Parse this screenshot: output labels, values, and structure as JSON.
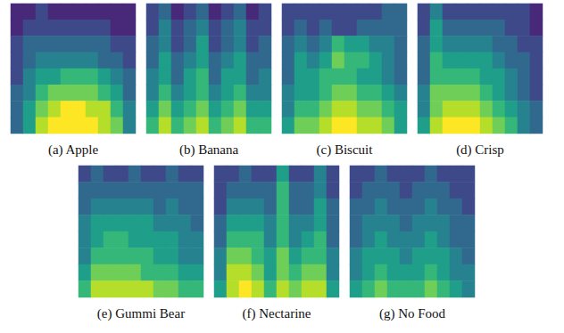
{
  "chart_data": [
    {
      "type": "heatmap",
      "title": "(a) Apple",
      "tick_labels": false,
      "zlim": [
        0,
        9
      ],
      "cells": [
        [
          1,
          1,
          2,
          1,
          1,
          1,
          1,
          1,
          1,
          1
        ],
        [
          1,
          2,
          2,
          2,
          2,
          2,
          2,
          2,
          1,
          1
        ],
        [
          2,
          3,
          3,
          3,
          3,
          3,
          3,
          3,
          2,
          2
        ],
        [
          2,
          3,
          4,
          4,
          4,
          4,
          4,
          3,
          3,
          2
        ],
        [
          2,
          4,
          5,
          5,
          6,
          6,
          6,
          5,
          4,
          3
        ],
        [
          3,
          4,
          6,
          7,
          7,
          7,
          7,
          6,
          5,
          3
        ],
        [
          3,
          5,
          7,
          8,
          9,
          9,
          8,
          8,
          6,
          4
        ],
        [
          3,
          5,
          8,
          9,
          9,
          9,
          9,
          8,
          7,
          4
        ]
      ]
    },
    {
      "type": "heatmap",
      "title": "(b) Banana",
      "tick_labels": false,
      "zlim": [
        0,
        9
      ],
      "cells": [
        [
          2,
          3,
          1,
          2,
          3,
          1,
          2,
          3,
          1,
          2
        ],
        [
          2,
          4,
          2,
          3,
          4,
          2,
          3,
          4,
          2,
          2
        ],
        [
          3,
          4,
          2,
          3,
          5,
          2,
          3,
          4,
          2,
          3
        ],
        [
          3,
          5,
          3,
          4,
          5,
          3,
          4,
          5,
          3,
          3
        ],
        [
          4,
          5,
          3,
          5,
          6,
          3,
          5,
          5,
          3,
          4
        ],
        [
          4,
          6,
          4,
          5,
          6,
          4,
          5,
          6,
          4,
          4
        ],
        [
          5,
          7,
          5,
          6,
          7,
          5,
          6,
          7,
          5,
          5
        ],
        [
          6,
          8,
          6,
          7,
          8,
          6,
          7,
          8,
          6,
          6
        ]
      ]
    },
    {
      "type": "heatmap",
      "title": "(c) Biscuit",
      "tick_labels": false,
      "zlim": [
        0,
        9
      ],
      "cells": [
        [
          2,
          2,
          2,
          2,
          2,
          2,
          2,
          2,
          3,
          3
        ],
        [
          2,
          3,
          2,
          3,
          2,
          2,
          3,
          3,
          3,
          3
        ],
        [
          3,
          4,
          3,
          4,
          6,
          5,
          5,
          4,
          4,
          3
        ],
        [
          3,
          5,
          4,
          5,
          7,
          6,
          6,
          5,
          4,
          3
        ],
        [
          3,
          5,
          5,
          6,
          6,
          6,
          5,
          5,
          4,
          3
        ],
        [
          4,
          5,
          5,
          6,
          7,
          7,
          6,
          6,
          5,
          4
        ],
        [
          4,
          6,
          6,
          7,
          8,
          8,
          7,
          7,
          6,
          5
        ],
        [
          5,
          7,
          7,
          8,
          9,
          9,
          8,
          8,
          7,
          5
        ]
      ]
    },
    {
      "type": "heatmap",
      "title": "(d) Crisp",
      "tick_labels": false,
      "zlim": [
        0,
        9
      ],
      "cells": [
        [
          2,
          4,
          2,
          2,
          2,
          2,
          2,
          2,
          2,
          1
        ],
        [
          2,
          5,
          3,
          3,
          3,
          3,
          3,
          2,
          2,
          1
        ],
        [
          3,
          5,
          4,
          4,
          4,
          4,
          3,
          3,
          2,
          2
        ],
        [
          3,
          6,
          5,
          5,
          5,
          5,
          4,
          3,
          3,
          2
        ],
        [
          3,
          6,
          6,
          6,
          6,
          5,
          5,
          4,
          3,
          2
        ],
        [
          4,
          7,
          7,
          7,
          7,
          6,
          5,
          4,
          3,
          2
        ],
        [
          4,
          7,
          8,
          8,
          8,
          7,
          6,
          5,
          4,
          3
        ],
        [
          5,
          8,
          9,
          9,
          9,
          8,
          7,
          6,
          4,
          3
        ]
      ]
    },
    {
      "type": "heatmap",
      "title": "(e) Gummi Bear",
      "tick_labels": false,
      "zlim": [
        0,
        9
      ],
      "cells": [
        [
          2,
          3,
          2,
          2,
          3,
          2,
          2,
          3,
          2,
          2
        ],
        [
          3,
          3,
          3,
          3,
          3,
          3,
          3,
          3,
          3,
          3
        ],
        [
          3,
          4,
          4,
          4,
          4,
          4,
          3,
          4,
          3,
          3
        ],
        [
          4,
          5,
          5,
          5,
          5,
          5,
          4,
          4,
          4,
          3
        ],
        [
          4,
          5,
          6,
          6,
          5,
          5,
          5,
          5,
          4,
          4
        ],
        [
          4,
          6,
          6,
          6,
          6,
          6,
          5,
          5,
          4,
          4
        ],
        [
          5,
          7,
          7,
          7,
          7,
          6,
          6,
          6,
          5,
          5
        ],
        [
          6,
          8,
          8,
          8,
          8,
          8,
          7,
          7,
          6,
          6
        ]
      ]
    },
    {
      "type": "heatmap",
      "title": "(f) Nectarine",
      "tick_labels": false,
      "zlim": [
        0,
        9
      ],
      "cells": [
        [
          2,
          2,
          3,
          2,
          2,
          5,
          2,
          2,
          4,
          2
        ],
        [
          2,
          3,
          3,
          3,
          3,
          6,
          3,
          3,
          4,
          2
        ],
        [
          2,
          4,
          4,
          4,
          3,
          6,
          3,
          3,
          5,
          3
        ],
        [
          3,
          5,
          5,
          5,
          4,
          6,
          4,
          4,
          5,
          3
        ],
        [
          3,
          6,
          6,
          6,
          4,
          6,
          4,
          5,
          6,
          3
        ],
        [
          4,
          7,
          7,
          6,
          5,
          7,
          5,
          6,
          6,
          4
        ],
        [
          4,
          8,
          8,
          7,
          5,
          7,
          6,
          7,
          7,
          4
        ],
        [
          5,
          8,
          9,
          8,
          6,
          8,
          7,
          8,
          8,
          5
        ]
      ]
    },
    {
      "type": "heatmap",
      "title": "(g) No Food",
      "tick_labels": false,
      "zlim": [
        0,
        9
      ],
      "cells": [
        [
          2,
          2,
          3,
          2,
          2,
          2,
          3,
          2,
          2,
          2
        ],
        [
          2,
          3,
          3,
          3,
          2,
          3,
          3,
          3,
          2,
          2
        ],
        [
          3,
          3,
          4,
          3,
          3,
          3,
          4,
          3,
          3,
          2
        ],
        [
          3,
          4,
          4,
          4,
          3,
          4,
          4,
          4,
          3,
          3
        ],
        [
          3,
          4,
          5,
          4,
          4,
          4,
          5,
          4,
          3,
          3
        ],
        [
          4,
          5,
          5,
          5,
          4,
          5,
          5,
          5,
          4,
          3
        ],
        [
          4,
          5,
          6,
          5,
          5,
          5,
          6,
          5,
          4,
          4
        ],
        [
          5,
          6,
          7,
          6,
          6,
          6,
          7,
          6,
          5,
          4
        ]
      ]
    }
  ]
}
